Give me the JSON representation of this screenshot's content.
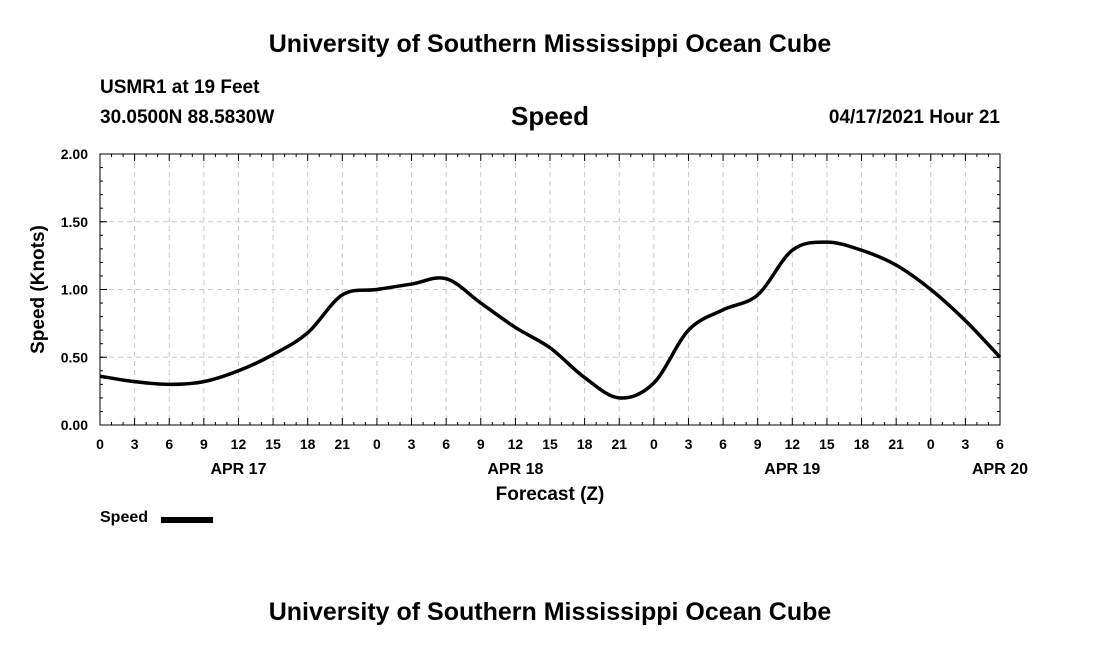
{
  "header": {
    "title": "University of Southern Mississippi Ocean Cube",
    "station": "USMR1 at 19 Feet",
    "coords": "30.0500N  88.5830W",
    "datetime": "04/17/2021 Hour 21"
  },
  "footer": {
    "title": "University of Southern Mississippi Ocean Cube"
  },
  "legend": {
    "label": "Speed"
  },
  "chart_data": {
    "type": "line",
    "title": "Speed",
    "xlabel": "Forecast (Z)",
    "ylabel": "Speed (Knots)",
    "x_unit": "forecast hour (Z), from APR 17 00Z",
    "xlim": [
      0,
      78
    ],
    "ylim": [
      0,
      2
    ],
    "grid": true,
    "legend_position": "bottom-left",
    "yticks": [
      "0.00",
      "0.50",
      "1.00",
      "1.50",
      "2.00"
    ],
    "xtick_labels": [
      "0",
      "3",
      "6",
      "9",
      "12",
      "15",
      "18",
      "21",
      "0",
      "3",
      "6",
      "9",
      "12",
      "15",
      "18",
      "21",
      "0",
      "3",
      "6",
      "9",
      "12",
      "15",
      "18",
      "21",
      "0",
      "3",
      "6"
    ],
    "date_labels": [
      {
        "label": "APR 17",
        "hour": 12
      },
      {
        "label": "APR 18",
        "hour": 36
      },
      {
        "label": "APR 19",
        "hour": 60
      },
      {
        "label": "APR 20",
        "hour": 78
      }
    ],
    "series": [
      {
        "name": "Speed",
        "color": "#000000",
        "x": [
          0,
          3,
          6,
          9,
          12,
          15,
          18,
          21,
          24,
          27,
          30,
          33,
          36,
          39,
          42,
          45,
          48,
          51,
          54,
          57,
          60,
          63,
          66,
          69,
          72,
          75,
          78
        ],
        "y": [
          0.36,
          0.32,
          0.3,
          0.32,
          0.4,
          0.52,
          0.68,
          0.96,
          1.0,
          1.04,
          1.08,
          0.9,
          0.72,
          0.57,
          0.35,
          0.2,
          0.31,
          0.7,
          0.85,
          0.96,
          1.29,
          1.35,
          1.29,
          1.18,
          1.0,
          0.77,
          0.5
        ]
      }
    ]
  }
}
